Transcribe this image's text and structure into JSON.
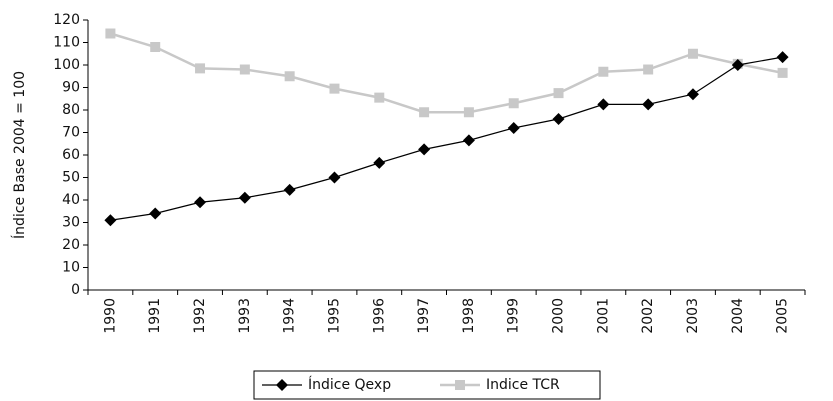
{
  "chart_data": {
    "type": "line",
    "y_label": "Índice Base 2004 = 100",
    "categories": [
      "1990",
      "1991",
      "1992",
      "1993",
      "1994",
      "1995",
      "1996",
      "1997",
      "1998",
      "1999",
      "2000",
      "2001",
      "2002",
      "2003",
      "2004",
      "2005"
    ],
    "series": [
      {
        "name": "Índice Qexp",
        "color": "#000000",
        "marker": "diamond",
        "values": [
          31,
          34,
          39,
          41,
          44.5,
          50,
          56.5,
          62.5,
          66.5,
          72,
          76,
          82.5,
          82.5,
          87,
          100,
          103.5
        ]
      },
      {
        "name": "Indice TCR",
        "color": "#c8c8c8",
        "marker": "square",
        "values": [
          114,
          108,
          98.5,
          98,
          95,
          89.5,
          85.5,
          79,
          79,
          83,
          87.5,
          97,
          98,
          105,
          100.5,
          96.5
        ]
      }
    ],
    "ylim": [
      0,
      120
    ],
    "yticks": [
      0,
      10,
      20,
      30,
      40,
      50,
      60,
      70,
      80,
      90,
      100,
      110,
      120
    ],
    "grid": false,
    "legend": "bottom"
  }
}
